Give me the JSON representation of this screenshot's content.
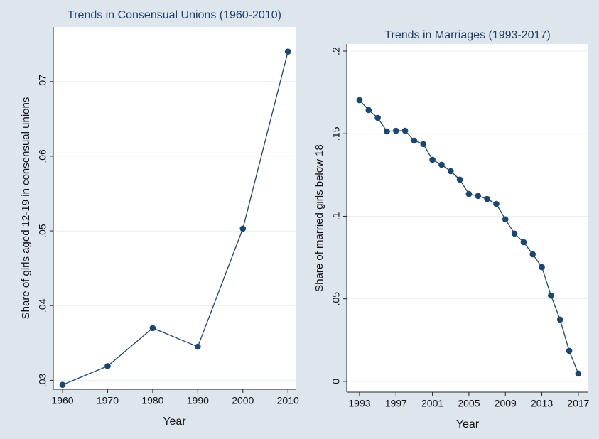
{
  "chart_data": [
    {
      "type": "line",
      "title": "Trends in Consensual Unions (1960-2010)",
      "x_label": "Year",
      "y_label": "Share of girls aged 12-19 in consensual unions",
      "x": [
        1960,
        1970,
        1980,
        1990,
        2000,
        2010
      ],
      "values": [
        0.0294,
        0.0319,
        0.037,
        0.0345,
        0.0503,
        0.074
      ],
      "color": "#1a476f",
      "grid": true,
      "xlim": [
        1957.95,
        2011.7
      ],
      "xticks": [
        1960,
        1970,
        1980,
        1990,
        2000,
        2010
      ],
      "ylim": [
        0.0288,
        0.0773
      ],
      "yticks": [
        {
          "value": 0.03,
          "label": ".03"
        },
        {
          "value": 0.04,
          "label": ".04"
        },
        {
          "value": 0.05,
          "label": ".05"
        },
        {
          "value": 0.06,
          "label": ".06"
        },
        {
          "value": 0.07,
          "label": ".07"
        }
      ]
    },
    {
      "type": "line",
      "title": "Trends in Marriages (1993-2017)",
      "x_label": "Year",
      "y_label": "Share of married girls below 18",
      "x": [
        1993,
        1994,
        1995,
        1996,
        1997,
        1998,
        1999,
        2000,
        2001,
        2002,
        2003,
        2004,
        2005,
        2006,
        2007,
        2008,
        2009,
        2010,
        2011,
        2012,
        2013,
        2014,
        2015,
        2016,
        2017
      ],
      "values": [
        0.1703,
        0.1643,
        0.1596,
        0.1514,
        0.1518,
        0.1518,
        0.1458,
        0.1437,
        0.1342,
        0.1312,
        0.1273,
        0.1222,
        0.1135,
        0.1123,
        0.1105,
        0.1075,
        0.0981,
        0.0895,
        0.0843,
        0.077,
        0.0692,
        0.052,
        0.0374,
        0.0185,
        0.0047
      ],
      "color": "#1a476f",
      "grid": true,
      "xlim": [
        1991.6,
        2018.1
      ],
      "xticks": [
        1993,
        1997,
        2001,
        2005,
        2009,
        2013,
        2017
      ],
      "ylim": [
        -0.0065,
        0.2043
      ],
      "yticks": [
        0,
        {
          "value": 0.05,
          "label": ".05"
        },
        {
          "value": 0.1,
          "label": ".1"
        },
        {
          "value": 0.15,
          "label": ".15"
        },
        {
          "value": 0.2,
          "label": ".2"
        }
      ]
    }
  ]
}
